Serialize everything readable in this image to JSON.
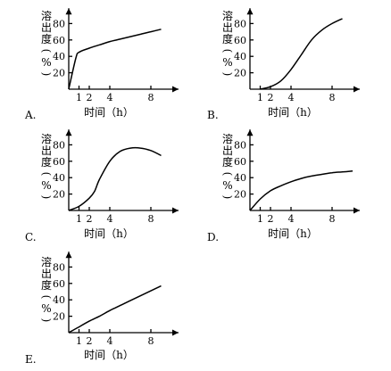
{
  "chart_data": [
    {
      "type": "line",
      "option_label": "A.",
      "ylabel_chars": [
        "溶",
        "出",
        "度",
        "(",
        "%",
        ")"
      ],
      "xlabel": "时间（h）",
      "xticks": [
        "1",
        "2",
        "4",
        "8"
      ],
      "yticks": [
        "20",
        "40",
        "60",
        "80"
      ],
      "xlim": [
        0,
        10
      ],
      "ylim": [
        0,
        90
      ],
      "series": [
        {
          "x": [
            0,
            0.7,
            1,
            2,
            3,
            4,
            5,
            6,
            7,
            8,
            9
          ],
          "y": [
            0,
            38,
            45,
            50,
            54,
            58,
            61,
            64,
            67,
            70,
            73
          ]
        }
      ]
    },
    {
      "type": "line",
      "option_label": "B.",
      "ylabel_chars": [
        "溶",
        "出",
        "度",
        "(",
        "%",
        ")"
      ],
      "xlabel": "时间（h）",
      "xticks": [
        "1",
        "2",
        "4",
        "8"
      ],
      "yticks": [
        "20",
        "40",
        "60",
        "80"
      ],
      "xlim": [
        0,
        10
      ],
      "ylim": [
        0,
        90
      ],
      "series": [
        {
          "x": [
            1,
            2,
            3,
            4,
            5,
            6,
            7,
            8,
            9
          ],
          "y": [
            0,
            3,
            10,
            24,
            42,
            60,
            72,
            80,
            86
          ]
        }
      ]
    },
    {
      "type": "line",
      "option_label": "C.",
      "ylabel_chars": [
        "溶",
        "出",
        "度",
        "(",
        "%",
        ")"
      ],
      "xlabel": "时间（h）",
      "xticks": [
        "1",
        "2",
        "4",
        "8"
      ],
      "yticks": [
        "20",
        "40",
        "60",
        "80"
      ],
      "xlim": [
        0,
        10
      ],
      "ylim": [
        0,
        90
      ],
      "series": [
        {
          "x": [
            0,
            1,
            2,
            2.5,
            3,
            4,
            5,
            6,
            7,
            8,
            9
          ],
          "y": [
            0,
            5,
            15,
            23,
            38,
            60,
            72,
            76,
            76,
            73,
            67
          ]
        }
      ]
    },
    {
      "type": "line",
      "option_label": "D.",
      "ylabel_chars": [
        "溶",
        "出",
        "度",
        "(",
        "%",
        ")"
      ],
      "xlabel": "时间（h）",
      "xticks": [
        "1",
        "2",
        "4",
        "8"
      ],
      "yticks": [
        "20",
        "40",
        "60",
        "80"
      ],
      "xlim": [
        0,
        10
      ],
      "ylim": [
        0,
        90
      ],
      "series": [
        {
          "x": [
            0,
            1,
            2,
            3,
            4,
            5,
            6,
            7,
            8,
            9,
            10
          ],
          "y": [
            0,
            14,
            24,
            30,
            35,
            39,
            42,
            44,
            46,
            47,
            48
          ]
        }
      ]
    },
    {
      "type": "line",
      "option_label": "E.",
      "ylabel_chars": [
        "溶",
        "出",
        "度",
        "(",
        "%",
        ")"
      ],
      "xlabel": "时间（h）",
      "xticks": [
        "1",
        "2",
        "4",
        "8"
      ],
      "yticks": [
        "20",
        "40",
        "60",
        "80"
      ],
      "xlim": [
        0,
        10
      ],
      "ylim": [
        0,
        90
      ],
      "series": [
        {
          "x": [
            0,
            1,
            2,
            3,
            4,
            5,
            6,
            7,
            8,
            9
          ],
          "y": [
            0,
            7,
            14,
            20,
            27,
            33,
            39,
            45,
            51,
            57
          ]
        }
      ]
    }
  ]
}
